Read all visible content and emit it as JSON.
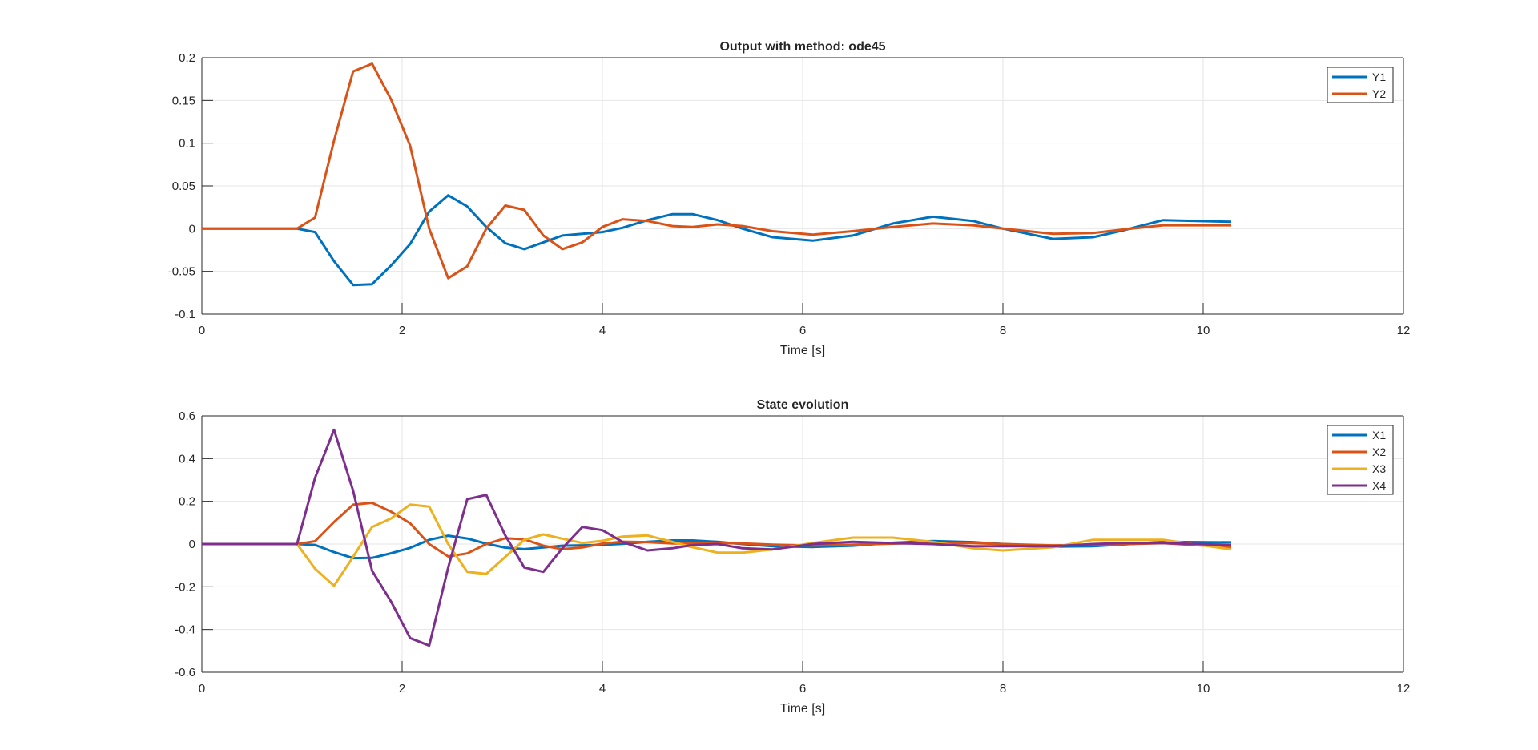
{
  "chart_data": [
    {
      "type": "line",
      "title": "Output with method: ode45",
      "xlabel": "Time [s]",
      "ylabel": "",
      "xlim": [
        0,
        12
      ],
      "ylim": [
        -0.1,
        0.2
      ],
      "xticks": [
        "0",
        "2",
        "4",
        "6",
        "8",
        "10",
        "12"
      ],
      "yticks": [
        "-0.1",
        "-0.05",
        "0",
        "0.05",
        "0.1",
        "0.15",
        "0.2"
      ],
      "grid": true,
      "legend_position": "top-right",
      "x": [
        0,
        0.95,
        1.13,
        1.32,
        1.51,
        1.7,
        1.89,
        2.08,
        2.27,
        2.46,
        2.65,
        2.84,
        3.03,
        3.22,
        3.41,
        3.6,
        3.8,
        4.0,
        4.2,
        4.45,
        4.7,
        4.9,
        5.15,
        5.4,
        5.7,
        6.1,
        6.5,
        6.9,
        7.3,
        7.7,
        8.0,
        8.5,
        8.9,
        9.2,
        9.6,
        10.28
      ],
      "series": [
        {
          "name": "Y1",
          "color": "#0072BD",
          "values": [
            0,
            0,
            -0.004,
            -0.038,
            -0.066,
            -0.065,
            -0.043,
            -0.018,
            0.02,
            0.039,
            0.026,
            0.002,
            -0.017,
            -0.024,
            -0.016,
            -0.008,
            -0.006,
            -0.004,
            0.001,
            0.01,
            0.017,
            0.017,
            0.01,
            0.0,
            -0.01,
            -0.014,
            -0.008,
            0.006,
            0.014,
            0.009,
            0.0,
            -0.012,
            -0.01,
            -0.002,
            0.01,
            0.008
          ]
        },
        {
          "name": "Y2",
          "color": "#D95319",
          "values": [
            0,
            0,
            0.013,
            0.103,
            0.184,
            0.193,
            0.151,
            0.097,
            0.0,
            -0.058,
            -0.044,
            0.0,
            0.027,
            0.022,
            -0.008,
            -0.024,
            -0.016,
            0.002,
            0.011,
            0.009,
            0.003,
            0.002,
            0.005,
            0.003,
            -0.003,
            -0.007,
            -0.003,
            0.002,
            0.006,
            0.004,
            0.0,
            -0.006,
            -0.005,
            -0.001,
            0.004,
            0.004
          ]
        }
      ]
    },
    {
      "type": "line",
      "title": "State evolution",
      "xlabel": "Time [s]",
      "ylabel": "",
      "xlim": [
        0,
        12
      ],
      "ylim": [
        -0.6,
        0.6
      ],
      "xticks": [
        "0",
        "2",
        "4",
        "6",
        "8",
        "10",
        "12"
      ],
      "yticks": [
        "-0.6",
        "-0.4",
        "-0.2",
        "0",
        "0.2",
        "0.4",
        "0.6"
      ],
      "grid": true,
      "legend_position": "top-right",
      "x": [
        0,
        0.95,
        1.13,
        1.32,
        1.51,
        1.7,
        1.89,
        2.08,
        2.27,
        2.46,
        2.65,
        2.84,
        3.03,
        3.22,
        3.41,
        3.6,
        3.8,
        4.0,
        4.2,
        4.45,
        4.7,
        4.9,
        5.15,
        5.4,
        5.7,
        6.1,
        6.5,
        6.9,
        7.3,
        7.7,
        8.0,
        8.5,
        8.9,
        9.2,
        9.6,
        10.28
      ],
      "series": [
        {
          "name": "X1",
          "color": "#0072BD",
          "values": [
            0,
            0,
            -0.004,
            -0.038,
            -0.066,
            -0.065,
            -0.043,
            -0.018,
            0.02,
            0.039,
            0.026,
            0.002,
            -0.017,
            -0.024,
            -0.016,
            -0.008,
            -0.006,
            -0.004,
            0.001,
            0.01,
            0.017,
            0.017,
            0.01,
            0.0,
            -0.01,
            -0.014,
            -0.008,
            0.006,
            0.014,
            0.009,
            0.0,
            -0.012,
            -0.01,
            -0.002,
            0.01,
            0.008
          ]
        },
        {
          "name": "X2",
          "color": "#D95319",
          "values": [
            0,
            0,
            0.013,
            0.103,
            0.184,
            0.193,
            0.151,
            0.097,
            0.0,
            -0.058,
            -0.044,
            0.0,
            0.027,
            0.022,
            -0.008,
            -0.024,
            -0.016,
            0.002,
            0.011,
            0.009,
            0.003,
            0.002,
            0.005,
            0.003,
            -0.003,
            -0.007,
            -0.003,
            0.002,
            0.006,
            0.004,
            0.0,
            -0.006,
            -0.005,
            -0.001,
            0.004,
            -0.015
          ]
        },
        {
          "name": "X3",
          "color": "#EDB120",
          "values": [
            0,
            0,
            -0.115,
            -0.195,
            -0.06,
            0.08,
            0.12,
            0.185,
            0.175,
            0.0,
            -0.13,
            -0.14,
            -0.06,
            0.02,
            0.045,
            0.025,
            0.005,
            0.015,
            0.035,
            0.04,
            0.01,
            -0.015,
            -0.04,
            -0.04,
            -0.025,
            0.005,
            0.03,
            0.03,
            0.01,
            -0.02,
            -0.03,
            -0.015,
            0.02,
            0.02,
            0.02,
            -0.025
          ]
        },
        {
          "name": "X4",
          "color": "#7E2F8E",
          "values": [
            0,
            0,
            0.31,
            0.535,
            0.25,
            -0.125,
            -0.27,
            -0.44,
            -0.475,
            -0.11,
            0.21,
            0.23,
            0.04,
            -0.11,
            -0.13,
            -0.02,
            0.08,
            0.065,
            0.01,
            -0.03,
            -0.02,
            -0.005,
            0.0,
            -0.02,
            -0.025,
            0.0,
            0.01,
            0.005,
            0.0,
            -0.01,
            -0.01,
            -0.01,
            0.0,
            0.005,
            0.005,
            -0.005
          ]
        }
      ]
    }
  ]
}
